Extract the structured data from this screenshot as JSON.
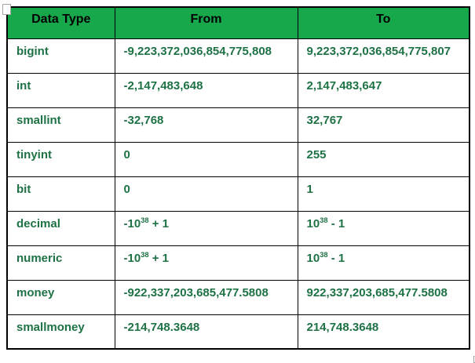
{
  "table": {
    "headers": [
      {
        "label": "Data Type"
      },
      {
        "label": "From"
      },
      {
        "label": "To"
      }
    ],
    "rows": [
      {
        "name": "bigint",
        "from": {
          "pre": "-9,223,372,036,854,775,808",
          "sup": "",
          "post": ""
        },
        "to": {
          "pre": "9,223,372,036,854,775,807",
          "sup": "",
          "post": ""
        }
      },
      {
        "name": "int",
        "from": {
          "pre": "-2,147,483,648",
          "sup": "",
          "post": ""
        },
        "to": {
          "pre": "2,147,483,647",
          "sup": "",
          "post": ""
        }
      },
      {
        "name": "smallint",
        "from": {
          "pre": "-32,768",
          "sup": "",
          "post": ""
        },
        "to": {
          "pre": "32,767",
          "sup": "",
          "post": ""
        }
      },
      {
        "name": "tinyint",
        "from": {
          "pre": "0",
          "sup": "",
          "post": ""
        },
        "to": {
          "pre": "255",
          "sup": "",
          "post": ""
        }
      },
      {
        "name": "bit",
        "from": {
          "pre": "0",
          "sup": "",
          "post": ""
        },
        "to": {
          "pre": "1",
          "sup": "",
          "post": ""
        }
      },
      {
        "name": "decimal",
        "from": {
          "pre": "-10",
          "sup": "38",
          "post": " + 1"
        },
        "to": {
          "pre": "10",
          "sup": "38",
          "post": " - 1"
        }
      },
      {
        "name": "numeric",
        "from": {
          "pre": "-10",
          "sup": "38",
          "post": " + 1"
        },
        "to": {
          "pre": "10",
          "sup": "38",
          "post": " - 1"
        }
      },
      {
        "name": "money",
        "from": {
          "pre": "-922,337,203,685,477.5808",
          "sup": "",
          "post": ""
        },
        "to": {
          "pre": "922,337,203,685,477.5808",
          "sup": "",
          "post": ""
        }
      },
      {
        "name": "smallmoney",
        "from": {
          "pre": "-214,748.3648",
          "sup": "",
          "post": ""
        },
        "to": {
          "pre": "214,748.3648",
          "sup": "",
          "post": ""
        }
      }
    ],
    "colors": {
      "header_bg": "#17a84b",
      "header_text": "#000000",
      "cell_text": "#1e7245",
      "border": "#000000",
      "handle": "#a6a6a6"
    }
  }
}
